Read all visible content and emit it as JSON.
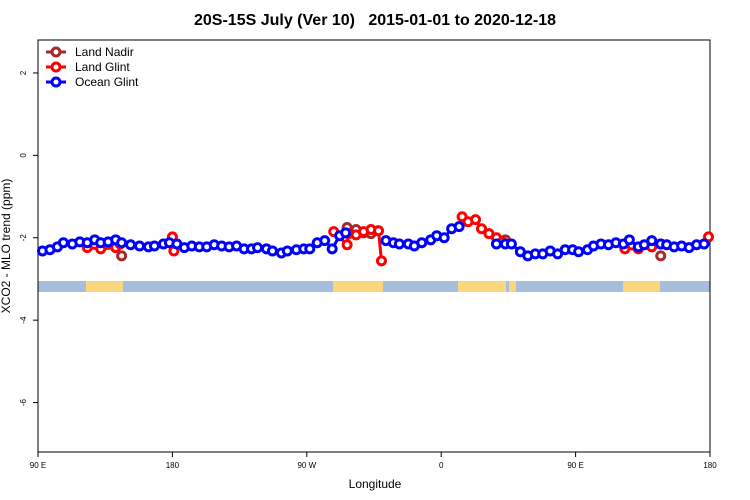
{
  "chart_data": {
    "type": "line",
    "title": "20S-15S July (Ver 10)   2015-01-01 to 2020-12-18",
    "xlabel": "Longitude",
    "ylabel": "XCO2 - MLO trend (ppm)",
    "xlim": [
      90,
      540
    ],
    "xticks": [
      {
        "value": 90,
        "label": "90 E"
      },
      {
        "value": 180,
        "label": "180"
      },
      {
        "value": 270,
        "label": "90 W"
      },
      {
        "value": 360,
        "label": "0"
      },
      {
        "value": 450,
        "label": "90 E"
      },
      {
        "value": 540,
        "label": "180"
      }
    ],
    "ylim": [
      -7.2,
      2.8
    ],
    "yticks": [
      2,
      0,
      -2,
      -4,
      -6
    ],
    "legend": "top-left",
    "series": [
      {
        "name": "Land Nadir",
        "color": "#a52a2a",
        "x": [
          146,
          200,
          297,
          303,
          308,
          313,
          318,
          360,
          403,
          460,
          507
        ],
        "values": [
          -2.44,
          null,
          -1.75,
          -1.8,
          -1.88,
          -1.9,
          -1.83,
          null,
          -2.05,
          null,
          -2.44
        ]
      },
      {
        "name": "Land Glint",
        "color": "#ff0000",
        "x": [
          123,
          132,
          142,
          145,
          160,
          180,
          181,
          250,
          288,
          297,
          298,
          303,
          308,
          313,
          318,
          320,
          350,
          374,
          378,
          383,
          387,
          392,
          397,
          401,
          450,
          483,
          492,
          501,
          507,
          520,
          539
        ],
        "values": [
          -2.24,
          -2.27,
          -2.24,
          -2.15,
          null,
          -1.98,
          -2.32,
          null,
          -1.85,
          -2.17,
          -1.9,
          -1.93,
          -1.85,
          -1.8,
          -1.83,
          -2.56,
          null,
          -1.49,
          -1.61,
          -1.56,
          -1.78,
          -1.9,
          -2.0,
          -2.1,
          null,
          -2.27,
          -2.27,
          -2.22,
          -2.15,
          null,
          -1.98
        ]
      },
      {
        "name": "Ocean Glint",
        "color": "#0000ff",
        "x": [
          93,
          98,
          103,
          107,
          113,
          118,
          123,
          128,
          132,
          137,
          142,
          146,
          152,
          158,
          164,
          168,
          174,
          178,
          183,
          188,
          193,
          198,
          203,
          208,
          213,
          218,
          223,
          228,
          233,
          237,
          243,
          247,
          253,
          257,
          263,
          268,
          272,
          277,
          282,
          287,
          292,
          296,
          310,
          323,
          328,
          332,
          338,
          342,
          347,
          353,
          357,
          362,
          367,
          372,
          385,
          397,
          403,
          407,
          413,
          418,
          423,
          428,
          433,
          438,
          443,
          448,
          452,
          458,
          462,
          467,
          472,
          477,
          482,
          486,
          492,
          496,
          501,
          507,
          511,
          516,
          521,
          526,
          531,
          536
        ],
        "values": [
          -2.32,
          -2.29,
          -2.22,
          -2.12,
          -2.15,
          -2.1,
          -2.12,
          -2.05,
          -2.12,
          -2.1,
          -2.05,
          -2.12,
          -2.17,
          -2.2,
          -2.22,
          -2.2,
          -2.15,
          -2.12,
          -2.15,
          -2.24,
          -2.2,
          -2.22,
          -2.22,
          -2.17,
          -2.2,
          -2.22,
          -2.2,
          -2.27,
          -2.27,
          -2.24,
          -2.27,
          -2.32,
          -2.37,
          -2.32,
          -2.29,
          -2.27,
          -2.27,
          -2.12,
          -2.07,
          -2.27,
          -1.95,
          -1.88,
          null,
          -2.07,
          -2.12,
          -2.15,
          -2.15,
          -2.2,
          -2.12,
          -2.05,
          -1.95,
          -2.0,
          -1.78,
          -1.73,
          null,
          -2.15,
          -2.15,
          -2.15,
          -2.34,
          -2.44,
          -2.39,
          -2.39,
          -2.32,
          -2.39,
          -2.29,
          -2.29,
          -2.34,
          -2.29,
          -2.2,
          -2.15,
          -2.17,
          -2.12,
          -2.15,
          -2.05,
          -2.22,
          -2.17,
          -2.07,
          -2.15,
          -2.17,
          -2.22,
          -2.2,
          -2.24,
          -2.17,
          -2.15
        ]
      }
    ]
  }
}
